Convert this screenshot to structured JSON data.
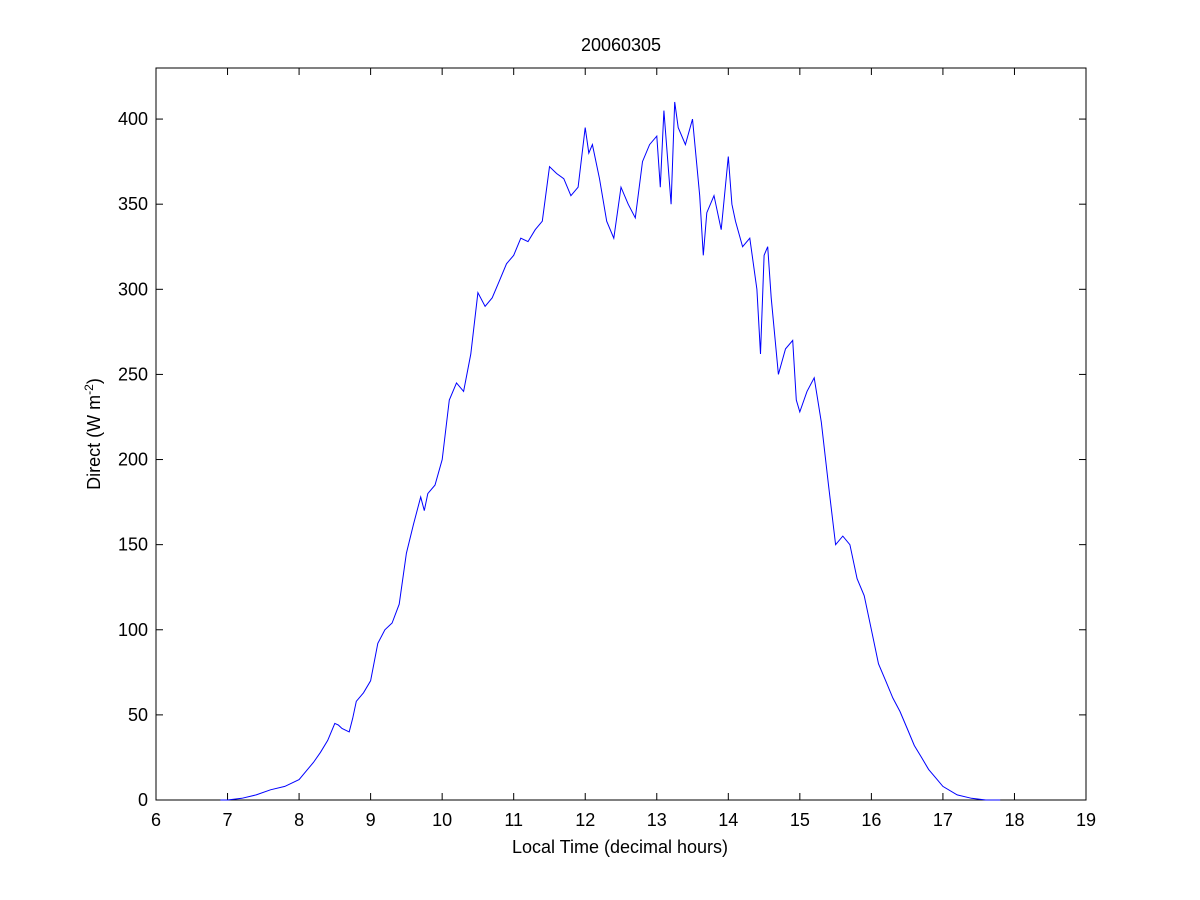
{
  "chart_data": {
    "type": "line",
    "title": "20060305",
    "xlabel": "Local Time (decimal hours)",
    "ylabel_main": "Direct (W m",
    "ylabel_sup": "-2",
    "ylabel_close": ")",
    "xlim": [
      6,
      19
    ],
    "ylim": [
      0,
      430
    ],
    "xticks": [
      6,
      7,
      8,
      9,
      10,
      11,
      12,
      13,
      14,
      15,
      16,
      17,
      18,
      19
    ],
    "yticks": [
      0,
      50,
      100,
      150,
      200,
      250,
      300,
      350,
      400
    ],
    "grid": false,
    "line_color": "#0000ff",
    "series": [
      {
        "x": [
          6.9,
          7.0,
          7.2,
          7.4,
          7.6,
          7.8,
          8.0,
          8.1,
          8.2,
          8.3,
          8.4,
          8.5,
          8.55,
          8.6,
          8.7,
          8.75,
          8.8,
          8.9,
          9.0,
          9.1,
          9.2,
          9.3,
          9.4,
          9.5,
          9.6,
          9.7,
          9.75,
          9.8,
          9.9,
          10.0,
          10.1,
          10.2,
          10.3,
          10.4,
          10.5,
          10.6,
          10.7,
          10.8,
          10.9,
          11.0,
          11.1,
          11.2,
          11.3,
          11.4,
          11.5,
          11.6,
          11.7,
          11.8,
          11.9,
          12.0,
          12.05,
          12.1,
          12.2,
          12.3,
          12.4,
          12.5,
          12.6,
          12.7,
          12.8,
          12.9,
          13.0,
          13.05,
          13.1,
          13.2,
          13.25,
          13.3,
          13.4,
          13.5,
          13.6,
          13.65,
          13.7,
          13.8,
          13.9,
          14.0,
          14.05,
          14.1,
          14.2,
          14.3,
          14.4,
          14.45,
          14.5,
          14.55,
          14.6,
          14.7,
          14.8,
          14.9,
          14.95,
          15.0,
          15.1,
          15.2,
          15.3,
          15.4,
          15.5,
          15.6,
          15.7,
          15.8,
          15.9,
          16.0,
          16.1,
          16.2,
          16.3,
          16.4,
          16.5,
          16.6,
          16.7,
          16.8,
          16.9,
          17.0,
          17.2,
          17.4,
          17.6,
          17.8
        ],
        "y": [
          0,
          0,
          1,
          3,
          6,
          8,
          12,
          17,
          22,
          28,
          35,
          45,
          44,
          42,
          40,
          48,
          58,
          63,
          70,
          92,
          100,
          104,
          115,
          145,
          162,
          178,
          170,
          180,
          185,
          200,
          235,
          245,
          240,
          262,
          298,
          290,
          295,
          305,
          315,
          320,
          330,
          328,
          335,
          340,
          372,
          368,
          365,
          355,
          360,
          395,
          380,
          385,
          365,
          340,
          330,
          360,
          350,
          342,
          375,
          385,
          390,
          360,
          405,
          350,
          410,
          395,
          385,
          400,
          355,
          320,
          345,
          355,
          335,
          378,
          350,
          340,
          325,
          330,
          300,
          262,
          320,
          325,
          295,
          250,
          265,
          270,
          235,
          228,
          240,
          248,
          222,
          185,
          150,
          155,
          150,
          130,
          120,
          100,
          80,
          70,
          60,
          52,
          42,
          32,
          25,
          18,
          13,
          8,
          3,
          1,
          0,
          0
        ]
      }
    ]
  }
}
